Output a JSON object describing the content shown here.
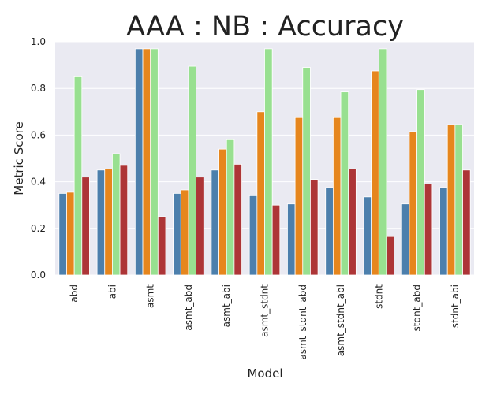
{
  "chart_data": {
    "type": "bar",
    "title": "AAA : NB : Accuracy",
    "xlabel": "Model",
    "ylabel": "Metric Score",
    "ylim": [
      0,
      1.0
    ],
    "yticks": [
      "0.0",
      "0.2",
      "0.4",
      "0.6",
      "0.8",
      "1.0"
    ],
    "grid": true,
    "categories": [
      "abd",
      "abi",
      "asmt",
      "asmt_abd",
      "asmt_abi",
      "asmt_stdnt",
      "asmt_stdnt_abd",
      "asmt_stdnt_abi",
      "stdnt",
      "stdnt_abd",
      "stdnt_abi"
    ],
    "series": [
      {
        "color": "#4c7fac",
        "values": [
          0.35,
          0.45,
          0.97,
          0.35,
          0.45,
          0.34,
          0.305,
          0.375,
          0.335,
          0.305,
          0.375
        ]
      },
      {
        "color": "#e6861d",
        "values": [
          0.355,
          0.455,
          0.97,
          0.365,
          0.54,
          0.7,
          0.675,
          0.675,
          0.875,
          0.615,
          0.645
        ]
      },
      {
        "color": "#98e090",
        "values": [
          0.85,
          0.52,
          0.97,
          0.895,
          0.58,
          0.97,
          0.89,
          0.785,
          0.97,
          0.795,
          0.645
        ]
      },
      {
        "color": "#ad3537",
        "values": [
          0.42,
          0.47,
          0.25,
          0.42,
          0.475,
          0.3,
          0.41,
          0.455,
          0.165,
          0.39,
          0.45
        ]
      }
    ]
  }
}
